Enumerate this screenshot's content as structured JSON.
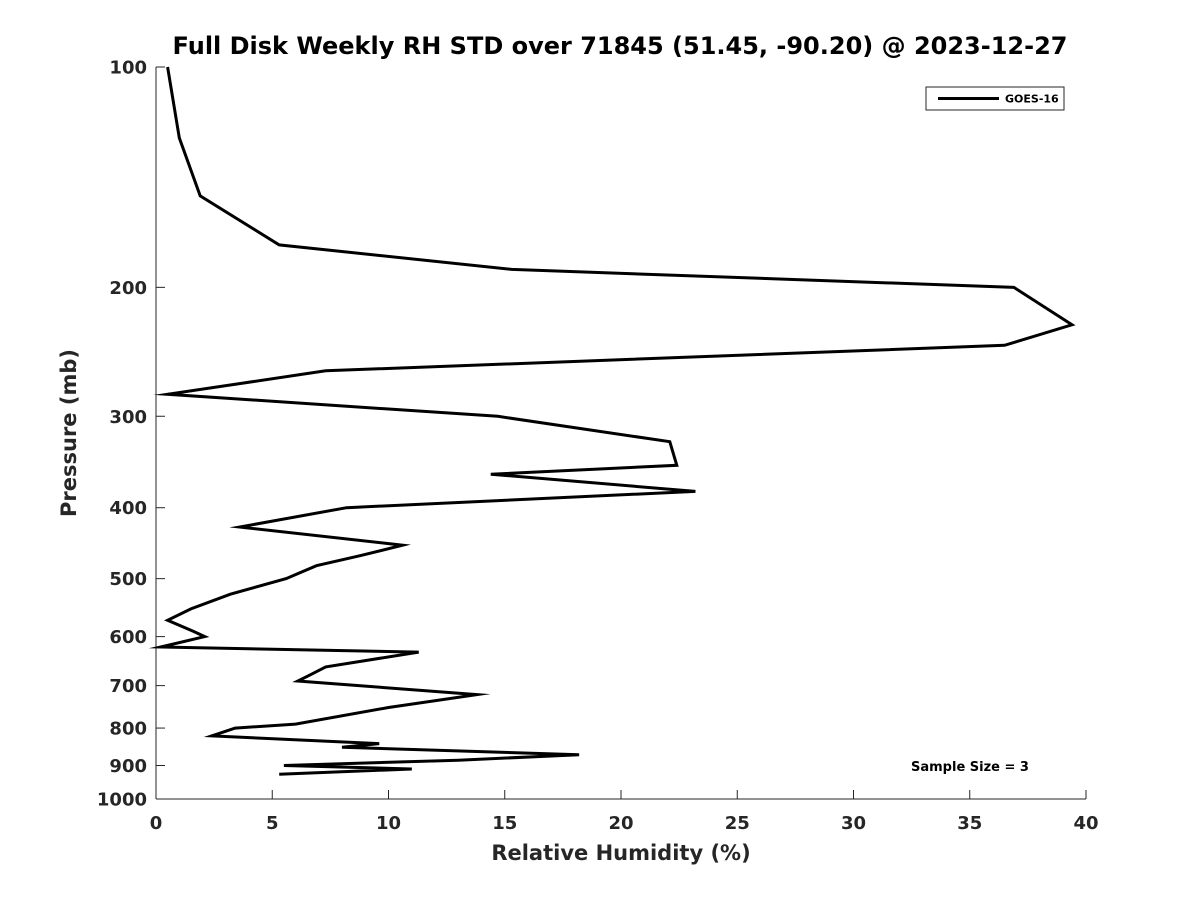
{
  "chart_data": {
    "type": "line",
    "title": "Full Disk Weekly RH STD over 71845 (51.45, -90.20) @ 2023-12-27",
    "xlabel": "Relative Humidity (%)",
    "ylabel": "Pressure (mb)",
    "xlim": [
      0,
      40
    ],
    "ylim": [
      100,
      1000
    ],
    "y_scale": "log",
    "y_reversed": true,
    "grid": false,
    "legend_position": "top-right",
    "x_ticks": [
      "0",
      "5",
      "10",
      "15",
      "20",
      "25",
      "30",
      "35",
      "40"
    ],
    "y_ticks": [
      "100",
      "200",
      "300",
      "400",
      "500",
      "600",
      "700",
      "800",
      "900",
      "1000"
    ],
    "series": [
      {
        "name": "GOES-16",
        "color": "#000000",
        "points": [
          [
            0.5,
            100
          ],
          [
            1.0,
            125
          ],
          [
            1.9,
            150
          ],
          [
            5.3,
            175
          ],
          [
            15.3,
            189
          ],
          [
            36.9,
            200
          ],
          [
            39.4,
            225
          ],
          [
            36.5,
            240
          ],
          [
            7.3,
            260
          ],
          [
            0.5,
            280
          ],
          [
            14.7,
            300
          ],
          [
            22.1,
            325
          ],
          [
            22.4,
            350
          ],
          [
            14.4,
            360
          ],
          [
            23.2,
            380
          ],
          [
            8.2,
            400
          ],
          [
            3.6,
            425
          ],
          [
            10.6,
            450
          ],
          [
            8.8,
            465
          ],
          [
            6.9,
            480
          ],
          [
            5.6,
            500
          ],
          [
            3.2,
            525
          ],
          [
            1.5,
            550
          ],
          [
            0.5,
            570
          ],
          [
            1.6,
            590
          ],
          [
            2.1,
            600
          ],
          [
            0.2,
            620
          ],
          [
            11.3,
            630
          ],
          [
            7.3,
            660
          ],
          [
            6.5,
            680
          ],
          [
            6.1,
            690
          ],
          [
            13.8,
            720
          ],
          [
            10.0,
            750
          ],
          [
            6.0,
            790
          ],
          [
            3.4,
            800
          ],
          [
            2.4,
            820
          ],
          [
            9.6,
            840
          ],
          [
            8.0,
            850
          ],
          [
            18.2,
            870
          ],
          [
            13.0,
            885
          ],
          [
            5.5,
            900
          ],
          [
            11.0,
            910
          ],
          [
            5.3,
            925
          ]
        ]
      }
    ],
    "annotations": [
      "Sample Size = 3"
    ]
  }
}
